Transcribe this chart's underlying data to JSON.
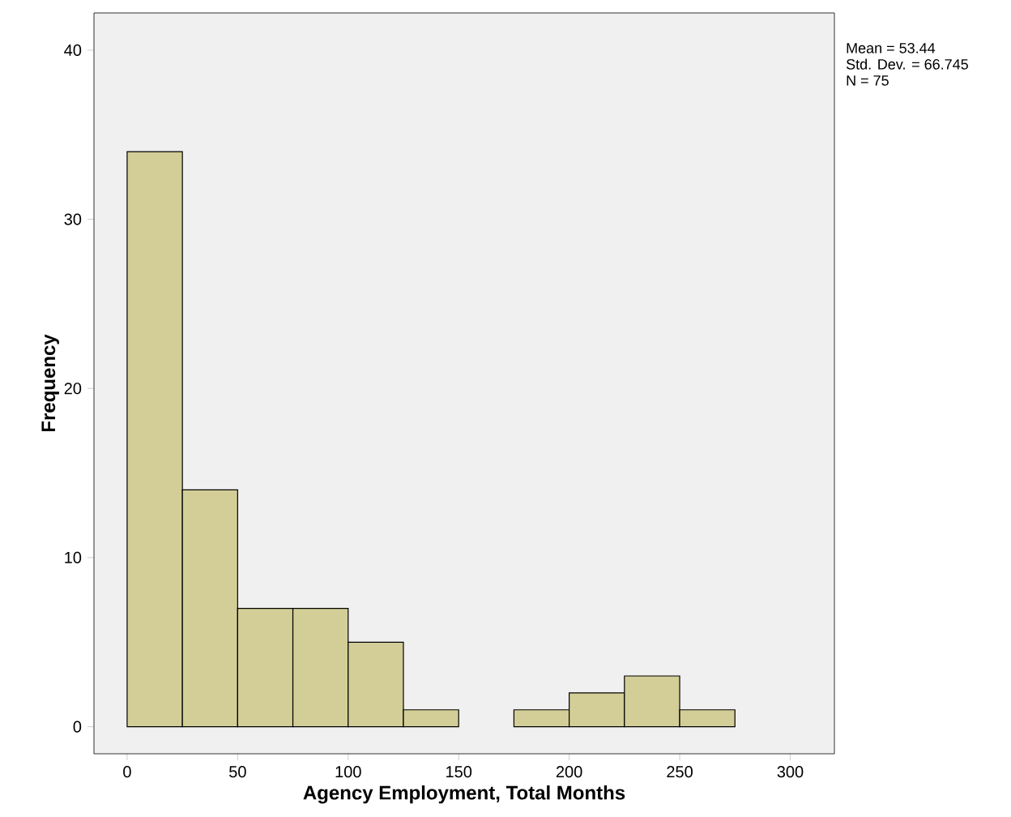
{
  "chart_data": {
    "type": "histogram",
    "xlabel": "Agency Employment, Total Months",
    "ylabel": "Frequency",
    "bins": [
      0,
      25,
      50,
      75,
      100,
      125,
      150,
      175,
      200,
      225,
      250,
      275
    ],
    "values": [
      34,
      14,
      7,
      7,
      5,
      1,
      0,
      1,
      2,
      3,
      1
    ],
    "color": "#d3ce97",
    "xlim": [
      -15,
      320
    ],
    "ylim": [
      -1.6,
      42.2
    ],
    "xticks": [
      0,
      50,
      100,
      150,
      200,
      250,
      300
    ],
    "yticks": [
      0,
      10,
      20,
      30,
      40
    ],
    "grid": false,
    "annotations": [
      "Mean = 53.44",
      "Std. Dev. = 66.745",
      "N = 75"
    ]
  }
}
